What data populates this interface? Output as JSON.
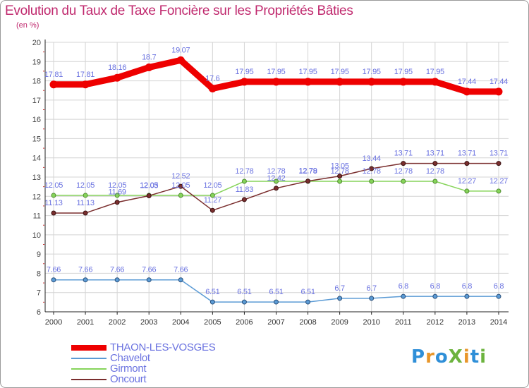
{
  "title": "Evolution du Taux de Taxe Foncière sur les Propriétés Bâties",
  "unit": "(en %)",
  "logo": {
    "letters": [
      {
        "ch": "P",
        "color": "#2f8fd8"
      },
      {
        "ch": "r",
        "color": "#e8962a"
      },
      {
        "ch": "o",
        "color": "#2f8fd8"
      },
      {
        "ch": "X",
        "color": "#6cb33e"
      },
      {
        "ch": "i",
        "color": "#e8962a"
      },
      {
        "ch": "t",
        "color": "#2f8fd8"
      },
      {
        "ch": "i",
        "color": "#6cb33e"
      }
    ]
  },
  "chart_data": {
    "type": "line",
    "title": "Evolution du Taux de Taxe Foncière sur les Propriétés Bâties",
    "ylabel": "(en %)",
    "xlabel": "",
    "ylim": [
      6,
      20
    ],
    "yticks": [
      6,
      7,
      8,
      9,
      10,
      11,
      12,
      13,
      14,
      15,
      16,
      17,
      18,
      19,
      20
    ],
    "grid": true,
    "legend": "bottom-left",
    "categories": [
      "2000",
      "2001",
      "2002",
      "2003",
      "2004",
      "2005",
      "2006",
      "2007",
      "2008",
      "2009",
      "2010",
      "2011",
      "2012",
      "2013",
      "2014"
    ],
    "series": [
      {
        "name": "THAON-LES-VOSGES",
        "color": "#ee0000",
        "labelColor": "#6a72e0",
        "values": [
          17.81,
          17.81,
          18.16,
          18.7,
          19.07,
          17.6,
          17.95,
          17.95,
          17.95,
          17.95,
          17.95,
          17.95,
          17.95,
          17.44,
          17.44
        ],
        "labels": [
          "17.81",
          "17.81",
          "18.16",
          "18.7",
          "19.07",
          "17.6",
          "17.95",
          "17.95",
          "17.95",
          "17.95",
          "17.95",
          "17.95",
          "17.95",
          "17.44",
          "17.44"
        ]
      },
      {
        "name": "Chavelot",
        "color": "#5b9bd5",
        "labelColor": "#6a72e0",
        "values": [
          7.66,
          7.66,
          7.66,
          7.66,
          7.66,
          6.51,
          6.51,
          6.51,
          6.51,
          6.7,
          6.7,
          6.8,
          6.8,
          6.8,
          6.8
        ],
        "labels": [
          "7.66",
          "7.66",
          "7.66",
          "7.66",
          "7.66",
          "6.51",
          "6.51",
          "6.51",
          "6.51",
          "6.7",
          "6.7",
          "6.8",
          "6.8",
          "6.8",
          "6.8"
        ]
      },
      {
        "name": "Girmont",
        "color": "#86d45a",
        "labelColor": "#6a72e0",
        "values": [
          12.05,
          12.05,
          12.05,
          12.05,
          12.05,
          12.05,
          12.78,
          12.78,
          12.78,
          12.78,
          12.78,
          12.78,
          12.78,
          12.27,
          12.27
        ],
        "labels": [
          "12.05",
          "12.05",
          "12.05",
          "12.05",
          "12.05",
          "12.05",
          "12.78",
          "12.78",
          "12.78",
          "12.78",
          "12.78",
          "12.78",
          "12.78",
          "12.27",
          "12.27"
        ]
      },
      {
        "name": "Oncourt",
        "color": "#7a2e2e",
        "labelColor": "#6a72e0",
        "values": [
          11.13,
          11.13,
          11.69,
          12.03,
          12.52,
          11.27,
          11.83,
          12.42,
          12.79,
          13.05,
          13.44,
          13.71,
          13.71,
          13.71,
          13.71
        ],
        "labels": [
          "11.13",
          "11.13",
          "11.69",
          "12.03",
          "12.52",
          "11.27",
          "11.83",
          "12.42",
          "12.79",
          "13.05",
          "13.44",
          "13.71",
          "13.71",
          "13.71",
          "13.71"
        ]
      }
    ]
  }
}
